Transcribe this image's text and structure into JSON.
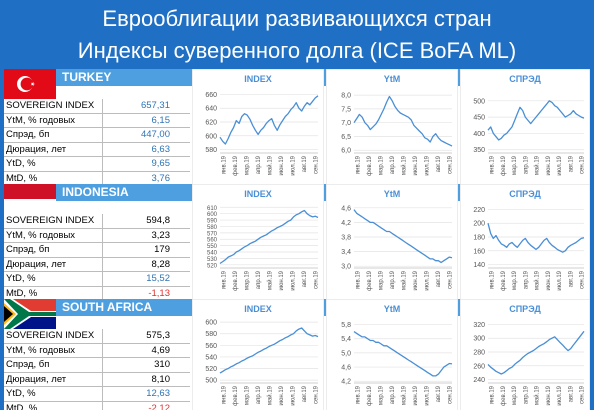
{
  "title_line1": "Еврооблигации развивающихся стран",
  "title_line2": "Индексы суверенного долга (ICE BoFA ML)",
  "stat_labels": [
    "SOVEREIGN INDEX",
    "YtM, % годовых",
    "Спрэд, бп",
    "Дюрация, лет",
    "YtD, %",
    "MtD, %"
  ],
  "countries": [
    {
      "name": "TURKEY",
      "stats": [
        "657,31",
        "6,15",
        "447,00",
        "6,63",
        "9,65",
        "3,76"
      ]
    },
    {
      "name": "INDONESIA",
      "stats": [
        "594,8",
        "3,23",
        "179",
        "8,28",
        "15,52",
        "-1,13"
      ]
    },
    {
      "name": "SOUTH AFRICA",
      "stats": [
        "575,3",
        "4,69",
        "310",
        "8,10",
        "12,63",
        "-2,12"
      ]
    }
  ],
  "colors": {
    "background": "#1f6fc4",
    "header_bar": "#4d9fe0",
    "line": "#4a8fd6",
    "chart_title": "#4a8fd6",
    "positive": "#2e74b5",
    "negative": "#e03131"
  },
  "x_ticks": [
    "янв.19",
    "фев.19",
    "мар.19",
    "апр.19",
    "май.19",
    "июн.19",
    "июл.19",
    "авг.19",
    "сен.19"
  ],
  "chart_data": [
    {
      "type": "line",
      "title": "INDEX",
      "yticks": [
        "580",
        "600",
        "620",
        "640",
        "660"
      ],
      "ylim": [
        575,
        665
      ],
      "values": [
        598,
        592,
        588,
        596,
        605,
        612,
        622,
        618,
        628,
        632,
        630,
        624,
        615,
        608,
        602,
        608,
        612,
        618,
        622,
        625,
        615,
        608,
        616,
        622,
        628,
        632,
        638,
        642,
        648,
        640,
        636,
        643,
        648,
        645,
        650,
        655,
        658
      ]
    },
    {
      "type": "line",
      "title": "YtM",
      "yticks": [
        "6,0",
        "6,5",
        "7,0",
        "7,5",
        "8,0"
      ],
      "ylim": [
        5.9,
        8.15
      ],
      "values": [
        7.0,
        7.15,
        7.3,
        7.2,
        7.0,
        6.9,
        6.75,
        6.85,
        6.95,
        7.1,
        7.3,
        7.5,
        7.75,
        7.95,
        7.8,
        7.6,
        7.45,
        7.35,
        7.3,
        7.25,
        7.2,
        7.1,
        6.9,
        6.8,
        6.7,
        6.6,
        6.45,
        6.4,
        6.3,
        6.5,
        6.6,
        6.45,
        6.35,
        6.3,
        6.25,
        6.2,
        6.15
      ]
    },
    {
      "type": "line",
      "title": "СПРЭД",
      "yticks": [
        "350",
        "400",
        "450",
        "500"
      ],
      "ylim": [
        340,
        530
      ],
      "values": [
        410,
        420,
        400,
        390,
        380,
        385,
        395,
        400,
        410,
        420,
        440,
        460,
        480,
        470,
        450,
        440,
        430,
        440,
        450,
        460,
        470,
        480,
        490,
        500,
        495,
        485,
        480,
        470,
        460,
        450,
        455,
        460,
        470,
        460,
        455,
        450,
        447
      ]
    },
    {
      "type": "line",
      "title": "INDEX",
      "yticks": [
        "520",
        "530",
        "540",
        "550",
        "560",
        "570",
        "580",
        "590",
        "600",
        "610"
      ],
      "ylim": [
        515,
        612
      ],
      "values": [
        522,
        525,
        528,
        532,
        534,
        536,
        540,
        542,
        545,
        548,
        550,
        553,
        555,
        557,
        560,
        563,
        565,
        567,
        570,
        573,
        575,
        578,
        580,
        582,
        585,
        588,
        590,
        595,
        598,
        600,
        603,
        605,
        600,
        597,
        595,
        596,
        594
      ]
    },
    {
      "type": "line",
      "title": "YtM",
      "yticks": [
        "3,0",
        "3,4",
        "3,8",
        "4,2",
        "4,6"
      ],
      "ylim": [
        2.95,
        4.65
      ],
      "values": [
        4.55,
        4.45,
        4.4,
        4.35,
        4.3,
        4.25,
        4.2,
        4.2,
        4.15,
        4.1,
        4.05,
        4.0,
        3.95,
        3.95,
        3.9,
        3.85,
        3.8,
        3.75,
        3.7,
        3.65,
        3.6,
        3.55,
        3.5,
        3.45,
        3.4,
        3.35,
        3.3,
        3.25,
        3.2,
        3.2,
        3.15,
        3.15,
        3.1,
        3.15,
        3.2,
        3.25,
        3.23
      ]
    },
    {
      "type": "line",
      "title": "СПРЭД",
      "yticks": [
        "140",
        "160",
        "180",
        "200",
        "220"
      ],
      "ylim": [
        135,
        225
      ],
      "values": [
        200,
        185,
        178,
        182,
        175,
        170,
        168,
        165,
        170,
        172,
        168,
        165,
        170,
        175,
        178,
        172,
        168,
        165,
        162,
        165,
        170,
        175,
        178,
        172,
        168,
        165,
        162,
        160,
        158,
        160,
        165,
        168,
        170,
        172,
        175,
        178,
        179
      ]
    },
    {
      "type": "line",
      "title": "INDEX",
      "yticks": [
        "500",
        "520",
        "540",
        "560",
        "580",
        "600"
      ],
      "ylim": [
        495,
        602
      ],
      "values": [
        512,
        515,
        518,
        520,
        523,
        525,
        528,
        530,
        533,
        535,
        538,
        540,
        542,
        545,
        548,
        550,
        553,
        555,
        558,
        560,
        562,
        565,
        568,
        570,
        573,
        575,
        578,
        580,
        585,
        588,
        590,
        585,
        580,
        578,
        576,
        577,
        575
      ]
    },
    {
      "type": "line",
      "title": "YtM",
      "yticks": [
        "4,2",
        "4,6",
        "5,0",
        "5,4",
        "5,8"
      ],
      "ylim": [
        4.15,
        5.9
      ],
      "values": [
        5.6,
        5.55,
        5.5,
        5.45,
        5.45,
        5.4,
        5.35,
        5.35,
        5.3,
        5.3,
        5.25,
        5.2,
        5.2,
        5.15,
        5.1,
        5.05,
        5.0,
        4.95,
        4.9,
        4.85,
        4.8,
        4.75,
        4.7,
        4.65,
        4.6,
        4.55,
        4.5,
        4.45,
        4.4,
        4.35,
        4.35,
        4.4,
        4.5,
        4.6,
        4.65,
        4.7,
        4.69
      ]
    },
    {
      "type": "line",
      "title": "СПРЭД",
      "yticks": [
        "240",
        "260",
        "280",
        "300",
        "320"
      ],
      "ylim": [
        235,
        325
      ],
      "values": [
        262,
        258,
        255,
        252,
        250,
        248,
        250,
        253,
        256,
        258,
        262,
        265,
        268,
        272,
        275,
        278,
        280,
        282,
        285,
        288,
        290,
        292,
        295,
        298,
        300,
        302,
        298,
        294,
        290,
        286,
        282,
        285,
        290,
        295,
        300,
        305,
        310
      ]
    }
  ]
}
